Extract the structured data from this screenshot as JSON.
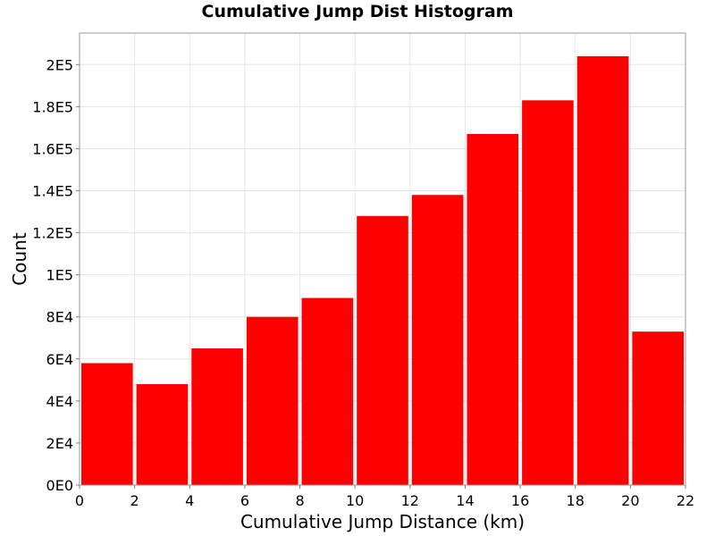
{
  "chart_data": {
    "type": "bar",
    "title": "Cumulative Jump Dist Histogram",
    "xlabel": "Cumulative Jump Distance (km)",
    "ylabel": "Count",
    "bin_edges": [
      0,
      2,
      4,
      6,
      8,
      10,
      12,
      14,
      16,
      18,
      20,
      22
    ],
    "values": [
      58000,
      48000,
      65000,
      80000,
      89000,
      128000,
      138000,
      167000,
      183000,
      204000,
      73000
    ],
    "xlim": [
      0,
      22
    ],
    "ylim": [
      0,
      215000
    ],
    "x_ticks": [
      0,
      2,
      4,
      6,
      8,
      10,
      12,
      14,
      16,
      18,
      20,
      22
    ],
    "x_tick_labels": [
      "0",
      "2",
      "4",
      "6",
      "8",
      "10",
      "12",
      "14",
      "16",
      "18",
      "20",
      "22"
    ],
    "y_ticks": [
      0,
      20000,
      40000,
      60000,
      80000,
      100000,
      120000,
      140000,
      160000,
      180000,
      200000
    ],
    "y_tick_labels": [
      "0E0",
      "2E4",
      "4E4",
      "6E4",
      "8E4",
      "1E5",
      "1.2E5",
      "1.4E5",
      "1.6E5",
      "1.8E5",
      "2E5"
    ],
    "bar_color": "#ff0000",
    "grid": true,
    "legend": "none"
  }
}
